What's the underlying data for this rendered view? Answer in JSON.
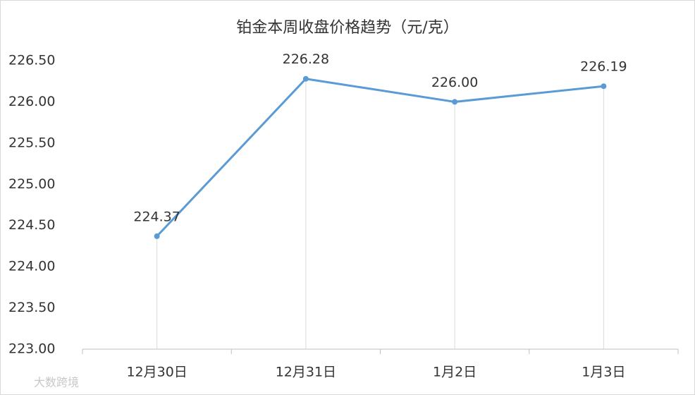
{
  "chart_data": {
    "type": "line",
    "title": "铂金本周收盘价格趋势（元/克）",
    "categories": [
      "12月30日",
      "12月31日",
      "1月2日",
      "1月3日"
    ],
    "series": [
      {
        "name": "铂金",
        "color": "#5b9bd5",
        "values": [
          224.37,
          226.28,
          226.0,
          226.19
        ],
        "value_labels": [
          "224.37",
          "226.28",
          "226.00",
          "226.19"
        ]
      }
    ],
    "ylim": [
      223,
      226.5
    ],
    "yticks": [
      {
        "value": 223,
        "label": "223.00"
      },
      {
        "value": 223.5,
        "label": "223.50"
      },
      {
        "value": 224,
        "label": "224.00"
      },
      {
        "value": 224.5,
        "label": "224.50"
      },
      {
        "value": 225,
        "label": "225.00"
      },
      {
        "value": 225.5,
        "label": "225.50"
      },
      {
        "value": 226,
        "label": "226.00"
      },
      {
        "value": 226.5,
        "label": "226.50"
      }
    ],
    "watermark": "大数跨境"
  }
}
